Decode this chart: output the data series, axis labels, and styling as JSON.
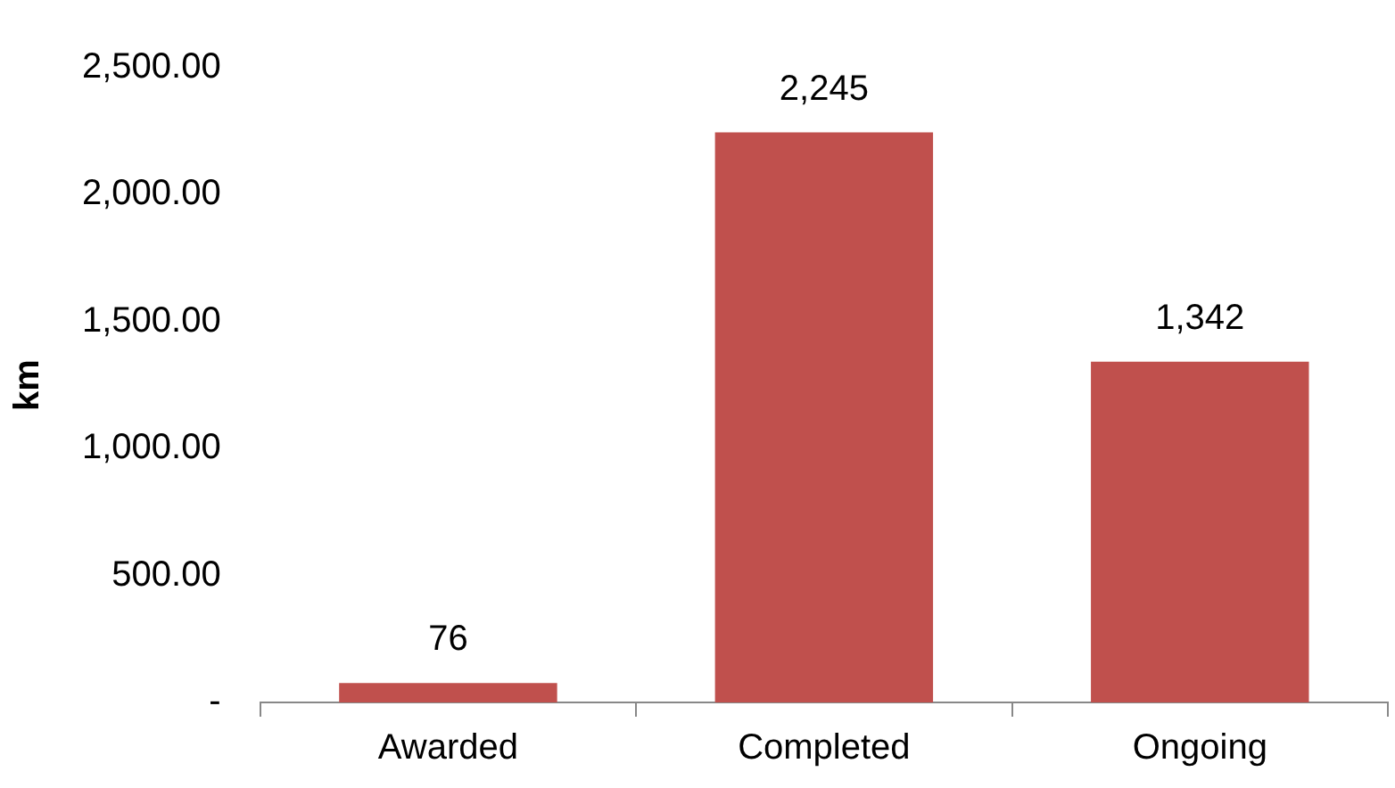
{
  "chart_data": {
    "type": "bar",
    "ylabel": "km",
    "categories": [
      "Awarded",
      "Completed",
      "Ongoing"
    ],
    "values": [
      76,
      2245,
      1342
    ],
    "color": "#c0504d",
    "value_labels": [
      "76",
      "2,245",
      "1,342"
    ],
    "ylim": [
      0,
      2500
    ],
    "yticks": [
      {
        "value": 0,
        "label": "-"
      },
      {
        "value": 500,
        "label": "500.00"
      },
      {
        "value": 1000,
        "label": "1,000.00"
      },
      {
        "value": 1500,
        "label": "1,500.00"
      },
      {
        "value": 2000,
        "label": "2,000.00"
      },
      {
        "value": 2500,
        "label": "2,500.00"
      }
    ],
    "grid": false,
    "legend": false
  }
}
